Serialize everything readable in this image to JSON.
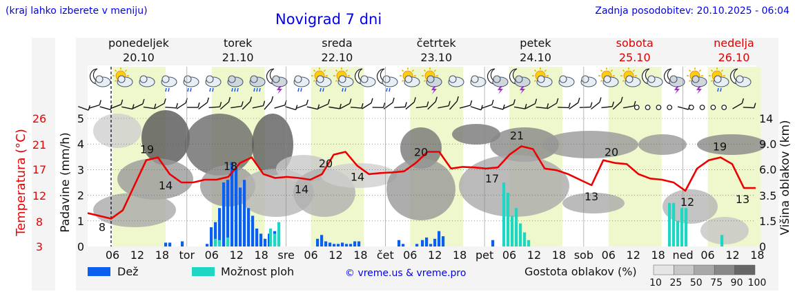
{
  "header": {
    "region_hint": "(kraj lahko izberete v meniju)",
    "title": "Novigrad 7 dni",
    "last_update": "Zadnja posodobitev: 20.10.2025 - 06:04"
  },
  "days": [
    {
      "name": "ponedeljek",
      "date": "20.10",
      "weekend": false
    },
    {
      "name": "torek",
      "date": "21.10",
      "weekend": false
    },
    {
      "name": "sreda",
      "date": "22.10",
      "weekend": false
    },
    {
      "name": "četrtek",
      "date": "23.10",
      "weekend": false
    },
    {
      "name": "petek",
      "date": "24.10",
      "weekend": false
    },
    {
      "name": "sobota",
      "date": "25.10",
      "weekend": true
    },
    {
      "name": "nedelja",
      "date": "26.10",
      "weekend": true
    }
  ],
  "weather_icons": [
    "moon-cloud",
    "sun-cloud",
    "cloud",
    "cloud-rain",
    "cloud-rain",
    "cloud-rain",
    "cloud-rain-heavy",
    "cloud-rain-heavy",
    "moon-storm",
    "cloud-rain",
    "sun-cloud-rain",
    "sun-cloud-rain",
    "moon-cloud",
    "moon-cloud-rain",
    "sun-cloud",
    "sun-cloud-storm",
    "cloud",
    "cloud",
    "moon-storm",
    "moon-storm",
    "sun-cloud",
    "cloud",
    "cloud",
    "sun-cloud",
    "sun-cloud",
    "moon-cloud",
    "moon-storm",
    "sun-cloud-storm",
    "sun-cloud-rain",
    "moon-cloud"
  ],
  "legend": {
    "rain": "Dež",
    "showers": "Možnost ploh",
    "credit": "© vreme.us & vreme.pro",
    "cloud_density": "Gostota oblakov (%)",
    "cloud_levels": [
      "10",
      "25",
      "50",
      "75",
      "90",
      "100"
    ]
  },
  "colors": {
    "rain": "#0a5ff0",
    "showers": "#1fd6c2",
    "temperature": "#ee0000",
    "weekend": "#dd0000",
    "title": "#0000ee",
    "daytime_band": "#eef8cc"
  },
  "chart_data": {
    "type": "meteogram",
    "axes": {
      "precip_label": "Padavine (mm/h)",
      "precip_ylim": [
        0,
        5
      ],
      "precip_ticks": [
        "0",
        "1",
        "2",
        "3",
        "4",
        "5"
      ],
      "temp_label": "Temperatura (°C)",
      "temp_ticks": [
        "3",
        "8",
        "12",
        "17",
        "21",
        "26"
      ],
      "cloud_label": "Višina oblakov (km)",
      "cloud_ticks": [
        "0",
        "1.5",
        "3.5",
        "6.0",
        "9.0",
        "14"
      ],
      "x_ticks": [
        "06",
        "12",
        "18",
        "tor",
        "06",
        "12",
        "18",
        "sre",
        "06",
        "12",
        "18",
        "čet",
        "06",
        "12",
        "18",
        "pet",
        "06",
        "12",
        "18",
        "sob",
        "06",
        "12",
        "18",
        "ned",
        "06",
        "12",
        "18"
      ]
    },
    "temperature_series": {
      "name": "Temperatura",
      "values": [
        9,
        8.5,
        8,
        9.5,
        14,
        18.5,
        19,
        16,
        14.5,
        14.5,
        15,
        15,
        15.5,
        18,
        19,
        16,
        15.3,
        15.5,
        15.3,
        15,
        16,
        19.5,
        20,
        17.5,
        16,
        16.2,
        16.3,
        16.5,
        18,
        20,
        20,
        17,
        17.3,
        17.2,
        17,
        17.2,
        19.5,
        21,
        20.5,
        17,
        16.7,
        16,
        15,
        14,
        18.5,
        18,
        17.8,
        16,
        15.2,
        15,
        14.5,
        13,
        17,
        18.5,
        19,
        17.8,
        13.5,
        13.5
      ]
    },
    "temperature_labels": [
      8,
      19,
      14,
      18,
      14,
      20,
      14,
      20,
      17,
      21,
      13,
      20,
      12,
      19,
      13
    ],
    "rain_series": {
      "name": "Dež",
      "values": [
        0.15,
        0.15,
        0.2,
        0.1,
        0.75,
        0.95,
        1.5,
        2.5,
        2.6,
        3.3,
        3.1,
        2.3,
        2.6,
        1.5,
        1.2,
        0.7,
        0.5,
        0.3,
        0.5,
        0.6,
        0.3,
        0.45,
        0.2,
        0.15,
        0.1,
        0.1,
        0.15,
        0.1,
        0.1,
        0.2,
        0.2,
        0.25,
        0.1,
        0.1,
        0.25,
        0.35,
        0.1,
        0.3,
        0.6,
        0.4,
        0.25
      ]
    },
    "showers_series": {
      "name": "Možnost ploh",
      "values": [
        0.3,
        0.25,
        0.35,
        0.7,
        0.5,
        0.95,
        2.5,
        2.1,
        1.2,
        1.5,
        0.9,
        0.55,
        0.25,
        1.7,
        1.7,
        1.0,
        1.5,
        1.5,
        0.45
      ]
    }
  }
}
